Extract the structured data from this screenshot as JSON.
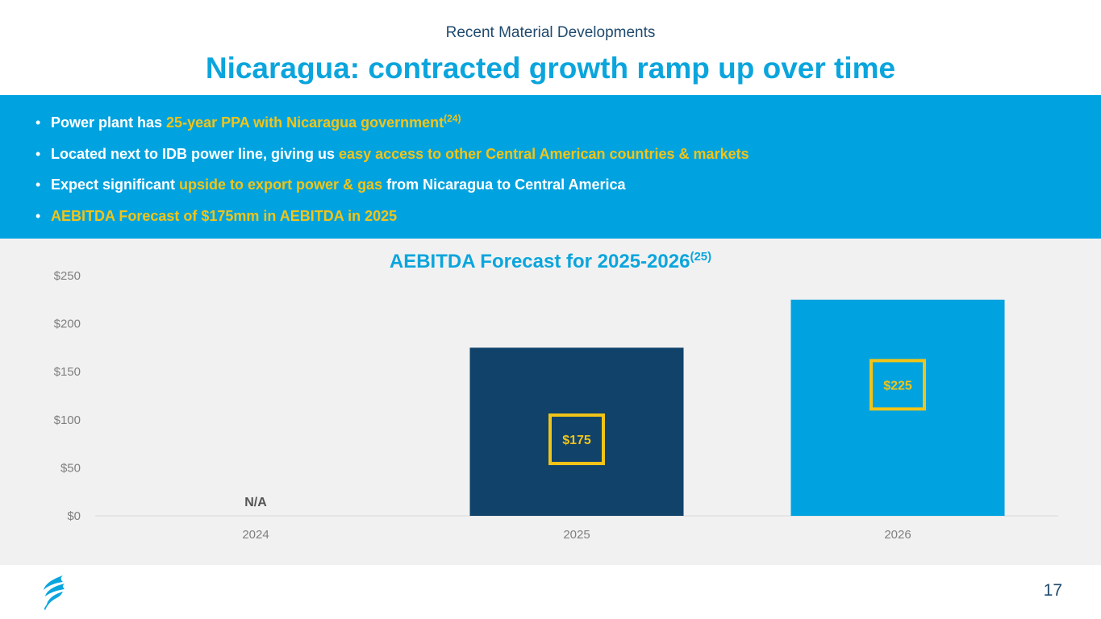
{
  "header": {
    "subtitle": "Recent Material Developments",
    "title": "Nicaragua: contracted growth ramp up over time"
  },
  "bullets": [
    {
      "pre": "Power plant has ",
      "hl": "25-year PPA with Nicaragua government",
      "sup": "(24)",
      "post": ""
    },
    {
      "pre": "Located next to IDB power line, giving us ",
      "hl": "easy access to other Central American countries & markets",
      "sup": "",
      "post": ""
    },
    {
      "pre": "Expect significant ",
      "hl": "upside to export power & gas",
      "sup": "",
      "post": " from Nicaragua to Central America"
    },
    {
      "pre": "",
      "hl": "AEBITDA Forecast of $175mm in AEBITDA in 2025",
      "sup": "",
      "post": ""
    }
  ],
  "colors": {
    "accent": "#0ba5dd",
    "navy": "#10426a",
    "bar2026": "#00a3e0",
    "highlight": "#f2c417",
    "band": "#00a3e0",
    "chart_bg": "#f1f1f1"
  },
  "chart_data": {
    "type": "bar",
    "title": "AEBITDA Forecast for 2025-2026",
    "title_sup": "(25)",
    "categories": [
      "2024",
      "2025",
      "2026"
    ],
    "values": [
      null,
      175,
      225
    ],
    "data_labels": [
      "N/A",
      "$175",
      "$225"
    ],
    "ylim": [
      0,
      250
    ],
    "yticks": [
      0,
      50,
      100,
      150,
      200,
      250
    ],
    "ytick_labels": [
      "$0",
      "$50",
      "$100",
      "$150",
      "$200",
      "$250"
    ],
    "bar_colors": [
      "#10426a",
      "#10426a",
      "#00a3e0"
    ],
    "boxed_labels": [
      false,
      true,
      true
    ],
    "xlabel": "",
    "ylabel": ""
  },
  "footer": {
    "page_number": "17",
    "logo_icon": "flame-logo-icon"
  }
}
